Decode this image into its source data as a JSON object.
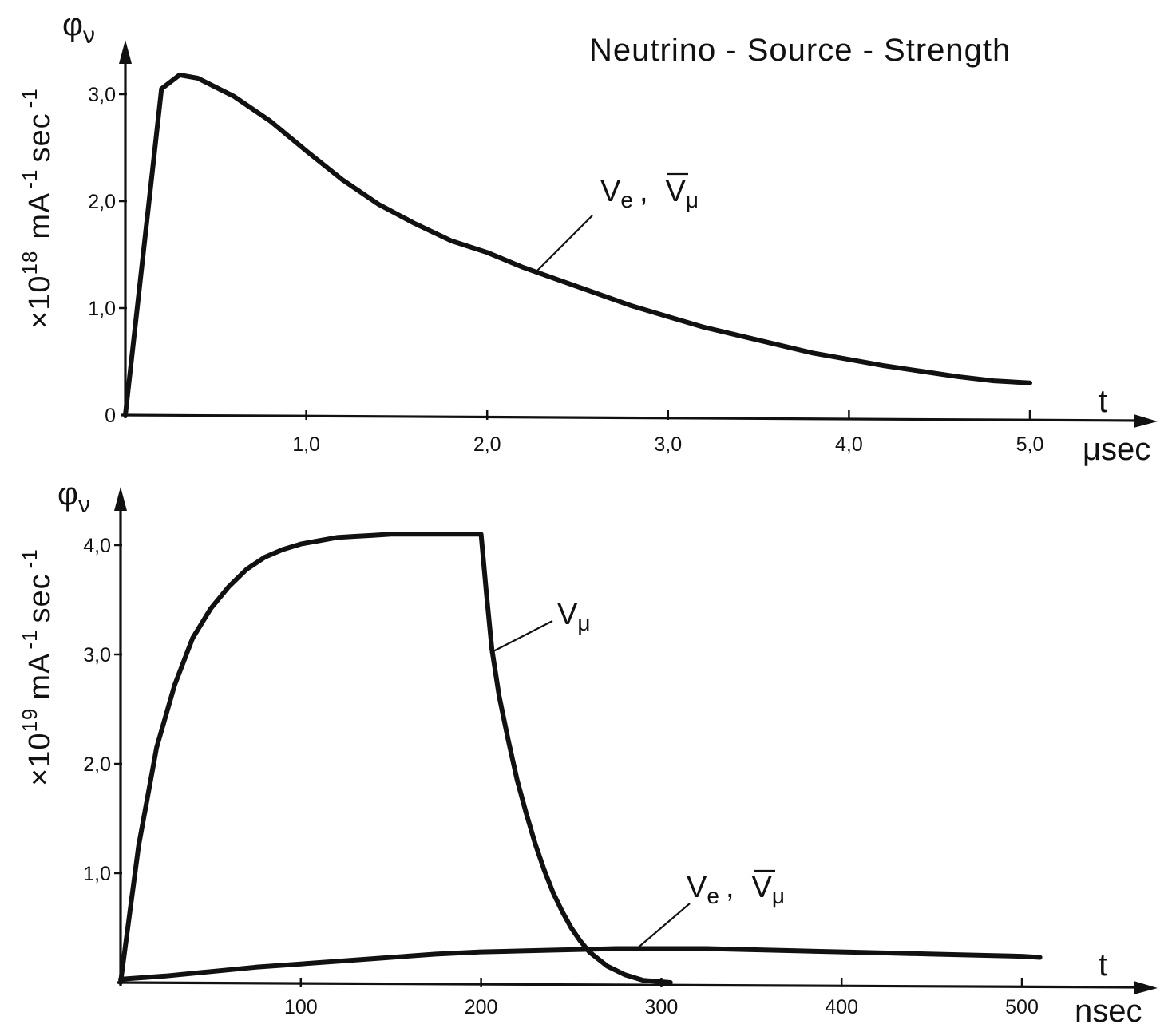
{
  "chart_data": [
    {
      "type": "line",
      "title": "Neutrino - Source - Strength",
      "y_symbol": "φ",
      "y_symbol_sub": "ν",
      "ylabel": "×10",
      "ylabel_exp": "18",
      "ylabel_unit": "mA",
      "ylabel_unit_exp": "-1",
      "ylabel_unit2": "sec",
      "ylabel_unit2_exp": "-1",
      "xlabel": "t",
      "xunit": "μsec",
      "xlim": [
        0,
        5.0
      ],
      "ylim": [
        0,
        3.0
      ],
      "x_ticks": [
        "1,0",
        "2,0",
        "3,0",
        "4,0",
        "5,0"
      ],
      "y_ticks": [
        "0",
        "1,0",
        "2,0",
        "3,0"
      ],
      "series": [
        {
          "name": "ν_e , ν̄_μ",
          "label_main": "V",
          "label_sub": "e",
          "label_sep": ",",
          "label2_main": "V",
          "label2_sub": "μ",
          "points": [
            [
              0.0,
              0.0
            ],
            [
              0.2,
              3.05
            ],
            [
              0.3,
              3.18
            ],
            [
              0.4,
              3.15
            ],
            [
              0.6,
              2.98
            ],
            [
              0.8,
              2.75
            ],
            [
              1.0,
              2.47
            ],
            [
              1.2,
              2.2
            ],
            [
              1.4,
              1.97
            ],
            [
              1.6,
              1.79
            ],
            [
              1.8,
              1.63
            ],
            [
              2.0,
              1.52
            ],
            [
              2.2,
              1.38
            ],
            [
              2.4,
              1.26
            ],
            [
              2.6,
              1.14
            ],
            [
              2.8,
              1.02
            ],
            [
              3.0,
              0.92
            ],
            [
              3.2,
              0.82
            ],
            [
              3.4,
              0.74
            ],
            [
              3.6,
              0.66
            ],
            [
              3.8,
              0.58
            ],
            [
              4.0,
              0.52
            ],
            [
              4.2,
              0.46
            ],
            [
              4.4,
              0.41
            ],
            [
              4.6,
              0.36
            ],
            [
              4.8,
              0.32
            ],
            [
              5.0,
              0.3
            ]
          ]
        }
      ]
    },
    {
      "type": "line",
      "title": "",
      "y_symbol": "φ",
      "y_symbol_sub": "ν",
      "ylabel": "×10",
      "ylabel_exp": "19",
      "ylabel_unit": "mA",
      "ylabel_unit_exp": "-1",
      "ylabel_unit2": "sec",
      "ylabel_unit2_exp": "-1",
      "xlabel": "t",
      "xunit": "nsec",
      "xlim": [
        0,
        500
      ],
      "ylim": [
        0,
        4.0
      ],
      "x_ticks": [
        "100",
        "200",
        "300",
        "400",
        "500"
      ],
      "y_ticks": [
        "1,0",
        "2,0",
        "3,0",
        "4,0"
      ],
      "series": [
        {
          "name": "ν_μ",
          "label_main": "V",
          "label_sub": "μ",
          "points": [
            [
              0,
              0.0
            ],
            [
              10,
              1.25
            ],
            [
              20,
              2.15
            ],
            [
              30,
              2.72
            ],
            [
              40,
              3.15
            ],
            [
              50,
              3.42
            ],
            [
              60,
              3.62
            ],
            [
              70,
              3.78
            ],
            [
              80,
              3.89
            ],
            [
              90,
              3.96
            ],
            [
              100,
              4.01
            ],
            [
              110,
              4.04
            ],
            [
              120,
              4.07
            ],
            [
              130,
              4.08
            ],
            [
              140,
              4.09
            ],
            [
              150,
              4.1
            ],
            [
              170,
              4.1
            ],
            [
              190,
              4.1
            ],
            [
              200,
              4.1
            ],
            [
              203,
              3.55
            ],
            [
              206,
              3.05
            ],
            [
              210,
              2.62
            ],
            [
              215,
              2.22
            ],
            [
              220,
              1.85
            ],
            [
              225,
              1.55
            ],
            [
              230,
              1.27
            ],
            [
              235,
              1.03
            ],
            [
              240,
              0.82
            ],
            [
              245,
              0.65
            ],
            [
              250,
              0.5
            ],
            [
              255,
              0.38
            ],
            [
              260,
              0.28
            ],
            [
              270,
              0.15
            ],
            [
              280,
              0.07
            ],
            [
              290,
              0.02
            ],
            [
              305,
              0.0
            ]
          ]
        },
        {
          "name": "ν_e , ν̄_μ",
          "label_main": "V",
          "label_sub": "e",
          "label_sep": ",",
          "label2_main": "V",
          "label2_sub": "μ",
          "points": [
            [
              0,
              0.03
            ],
            [
              25,
              0.06
            ],
            [
              50,
              0.1
            ],
            [
              75,
              0.14
            ],
            [
              100,
              0.17
            ],
            [
              125,
              0.2
            ],
            [
              150,
              0.23
            ],
            [
              175,
              0.26
            ],
            [
              200,
              0.28
            ],
            [
              225,
              0.29
            ],
            [
              250,
              0.3
            ],
            [
              275,
              0.31
            ],
            [
              300,
              0.31
            ],
            [
              325,
              0.31
            ],
            [
              350,
              0.3
            ],
            [
              375,
              0.29
            ],
            [
              400,
              0.28
            ],
            [
              425,
              0.27
            ],
            [
              450,
              0.26
            ],
            [
              475,
              0.25
            ],
            [
              500,
              0.24
            ],
            [
              510,
              0.23
            ]
          ]
        }
      ]
    }
  ]
}
